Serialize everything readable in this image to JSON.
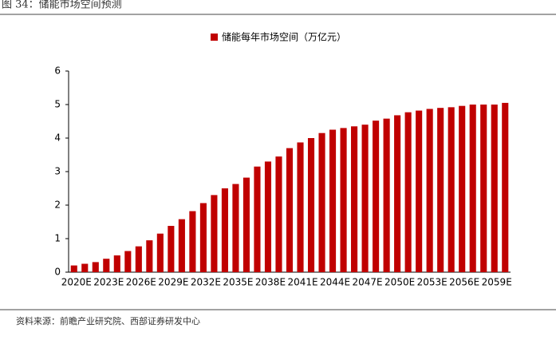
{
  "title": "图 34：储能市场空间预测",
  "source": "资料来源：前瞻产业研究院、西部证券研发中心",
  "chart_data": {
    "type": "bar",
    "categories": [
      "2020E",
      null,
      null,
      "2023E",
      null,
      null,
      "2026E",
      null,
      null,
      "2029E",
      null,
      null,
      "2032E",
      null,
      null,
      "2035E",
      null,
      null,
      "2038E",
      null,
      null,
      "2041E",
      null,
      null,
      "2044E",
      null,
      null,
      "2047E",
      null,
      null,
      "2050E",
      null,
      null,
      "2053E",
      null,
      null,
      "2056E",
      null,
      null,
      "2059E",
      null
    ],
    "series": [
      {
        "name": "储能每年市场空间（万亿元）",
        "color": "#c00000",
        "values": [
          0.2,
          0.25,
          0.3,
          0.4,
          0.5,
          0.63,
          0.77,
          0.95,
          1.15,
          1.38,
          1.58,
          1.82,
          2.06,
          2.3,
          2.5,
          2.63,
          2.82,
          3.15,
          3.3,
          3.45,
          3.7,
          3.87,
          4.0,
          4.15,
          4.25,
          4.3,
          4.35,
          4.4,
          4.52,
          4.58,
          4.68,
          4.77,
          4.82,
          4.87,
          4.9,
          4.92,
          4.96,
          5.0,
          5.0,
          5.0,
          5.05
        ]
      }
    ],
    "ylim": [
      0,
      6
    ],
    "yticks": [
      0,
      1,
      2,
      3,
      4,
      5,
      6
    ],
    "legend": "top"
  }
}
